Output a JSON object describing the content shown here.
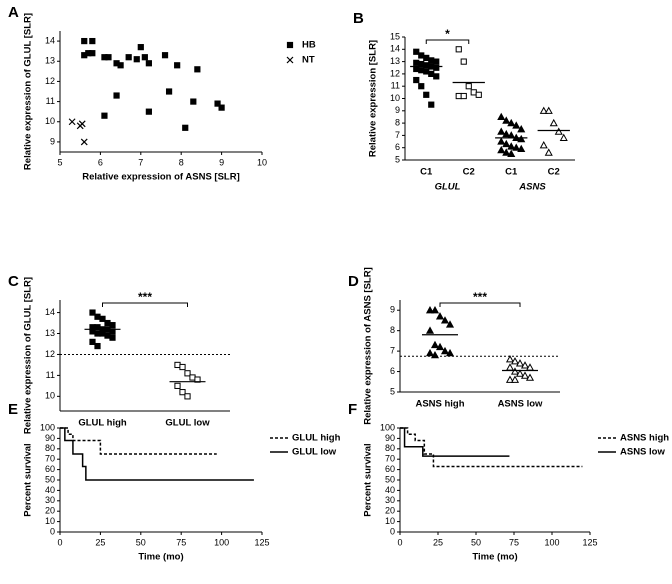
{
  "chart_data": [
    {
      "panel": "A",
      "type": "scatter",
      "x_label": "Relative expression of ASNS [SLR]",
      "y_label": "Relative expression of GLUL [SLR]",
      "xlim": [
        5,
        10
      ],
      "xticks": [
        5,
        6,
        7,
        8,
        9,
        10
      ],
      "ylim": [
        8.5,
        14.5
      ],
      "yticks": [
        9,
        10,
        11,
        12,
        13,
        14
      ],
      "series": [
        {
          "name": "HB",
          "marker": "square",
          "color": "#000000",
          "x": [
            5.6,
            5.8,
            5.6,
            5.7,
            5.8,
            6.1,
            6.2,
            6.4,
            6.5,
            6.7,
            6.9,
            7.0,
            7.1,
            7.2,
            7.6,
            7.9,
            8.4,
            6.1,
            6.4,
            7.2,
            7.7,
            8.1,
            8.3,
            8.9,
            9.0
          ],
          "y": [
            14.0,
            14.0,
            13.3,
            13.4,
            13.4,
            13.2,
            13.2,
            12.9,
            12.8,
            13.2,
            13.1,
            13.7,
            13.2,
            12.9,
            13.3,
            12.8,
            12.6,
            10.3,
            11.3,
            10.5,
            11.5,
            9.7,
            11.0,
            10.9,
            10.7
          ]
        },
        {
          "name": "NT",
          "marker": "x",
          "color": "#000000",
          "x": [
            5.3,
            5.5,
            5.55,
            5.6
          ],
          "y": [
            10.0,
            9.8,
            9.9,
            9.0
          ]
        }
      ]
    },
    {
      "panel": "B",
      "type": "strip",
      "y_label": "Relative expression [SLR]",
      "ylim": [
        5,
        15
      ],
      "yticks": [
        5,
        6,
        7,
        8,
        9,
        10,
        11,
        12,
        13,
        14,
        15
      ],
      "categories": [
        "C1",
        "C2",
        "C1",
        "C2"
      ],
      "groups": [
        "GLUL",
        "ASNS"
      ],
      "markers": [
        "square",
        "open-square",
        "triangle",
        "open-triangle"
      ],
      "values": [
        [
          13.8,
          13.5,
          13.3,
          13.1,
          13.0,
          12.9,
          12.8,
          12.7,
          12.6,
          12.5,
          12.4,
          12.3,
          12.2,
          12.0,
          11.8,
          11.5,
          11.0,
          10.3,
          9.5
        ],
        [
          14.0,
          13.0,
          11.0,
          10.5,
          10.3,
          10.2,
          10.2
        ],
        [
          8.5,
          8.2,
          8.0,
          7.8,
          7.5,
          7.3,
          7.1,
          7.0,
          6.8,
          6.7,
          6.5,
          6.3,
          6.1,
          6.0,
          5.9,
          5.8,
          5.6,
          5.5
        ],
        [
          9.0,
          9.0,
          8.0,
          7.3,
          6.8,
          6.2,
          5.6
        ]
      ],
      "medians": [
        12.6,
        11.3,
        6.8,
        7.4
      ],
      "significance": "*"
    },
    {
      "panel": "C",
      "type": "strip",
      "y_label": "Relative expression of GLUL [SLR]",
      "ylim": [
        9.3,
        14.6
      ],
      "yticks": [
        10,
        11,
        12,
        13,
        14
      ],
      "categories": [
        "GLUL high",
        "GLUL low"
      ],
      "markers": [
        "square",
        "open-square"
      ],
      "values": [
        [
          14.0,
          13.8,
          13.7,
          13.5,
          13.4,
          13.3,
          13.3,
          13.2,
          13.2,
          13.1,
          13.1,
          13.0,
          13.0,
          12.9,
          12.8,
          12.6,
          12.4
        ],
        [
          11.5,
          11.4,
          11.1,
          10.9,
          10.8,
          10.5,
          10.2,
          10.0
        ]
      ],
      "medians": [
        13.2,
        10.7
      ],
      "threshold": 12,
      "significance": "***"
    },
    {
      "panel": "D",
      "type": "strip",
      "y_label": "Relative expression of ASNS [SLR]",
      "ylim": [
        5,
        9.5
      ],
      "yticks": [
        5,
        6,
        7,
        8,
        9
      ],
      "categories": [
        "ASNS high",
        "ASNS low"
      ],
      "markers": [
        "triangle",
        "open-triangle"
      ],
      "values": [
        [
          9.0,
          9.0,
          8.7,
          8.5,
          8.3,
          8.0,
          7.3,
          7.2,
          7.0,
          6.9,
          6.9,
          6.8
        ],
        [
          6.6,
          6.5,
          6.4,
          6.3,
          6.2,
          6.2,
          6.0,
          5.9,
          5.8,
          5.7,
          5.6,
          5.6
        ]
      ],
      "medians": [
        7.8,
        6.05
      ],
      "threshold": 6.75,
      "significance": "***"
    },
    {
      "panel": "E",
      "type": "survival",
      "x_label": "Time (mo)",
      "y_label": "Percent survival",
      "xlim": [
        0,
        125
      ],
      "xticks": [
        0,
        25,
        50,
        75,
        100,
        125
      ],
      "ylim": [
        0,
        100
      ],
      "yticks": [
        0,
        10,
        20,
        30,
        40,
        50,
        60,
        70,
        80,
        90,
        100
      ],
      "series": [
        {
          "name": "GLUL high",
          "line_style": "dashed",
          "color": "#000000",
          "x": [
            0,
            5,
            5,
            8,
            8,
            25,
            25,
            97
          ],
          "y": [
            100,
            100,
            94,
            94,
            88,
            88,
            75,
            75
          ]
        },
        {
          "name": "GLUL low",
          "line_style": "solid",
          "color": "#000000",
          "x": [
            0,
            3,
            3,
            8,
            8,
            14,
            14,
            16,
            16,
            120
          ],
          "y": [
            100,
            100,
            88,
            88,
            75,
            75,
            63,
            63,
            50,
            50
          ]
        }
      ]
    },
    {
      "panel": "F",
      "type": "survival",
      "x_label": "Time (mo)",
      "y_label": "Percent survival",
      "xlim": [
        0,
        125
      ],
      "xticks": [
        0,
        25,
        50,
        75,
        100,
        125
      ],
      "ylim": [
        0,
        100
      ],
      "yticks": [
        0,
        10,
        20,
        30,
        40,
        50,
        60,
        70,
        80,
        90,
        100
      ],
      "series": [
        {
          "name": "ASNS high",
          "line_style": "dashed",
          "color": "#000000",
          "x": [
            0,
            5,
            5,
            10,
            10,
            16,
            16,
            22,
            22,
            120
          ],
          "y": [
            100,
            100,
            94,
            94,
            88,
            88,
            75,
            75,
            63,
            63
          ]
        },
        {
          "name": "ASNS low",
          "line_style": "solid",
          "color": "#000000",
          "x": [
            0,
            3,
            3,
            15,
            15,
            72
          ],
          "y": [
            100,
            100,
            82,
            82,
            73,
            73
          ]
        }
      ]
    }
  ]
}
